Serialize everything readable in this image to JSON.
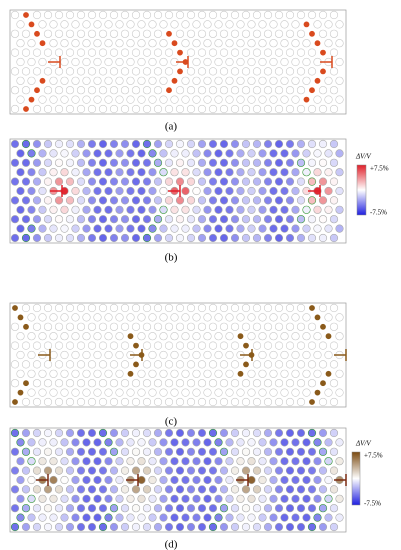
{
  "panels": [
    {
      "label": "(a)"
    },
    {
      "label": "(b)",
      "colorbar": {
        "title": "ΔV/V",
        "max_label": "+7.5%",
        "min_label": "-7.5%"
      }
    },
    {
      "label": "(c)"
    },
    {
      "label": "(d)",
      "colorbar": {
        "title": "ΔV/V",
        "max_label": "+7.5%",
        "min_label": "-7.5%"
      }
    }
  ]
}
